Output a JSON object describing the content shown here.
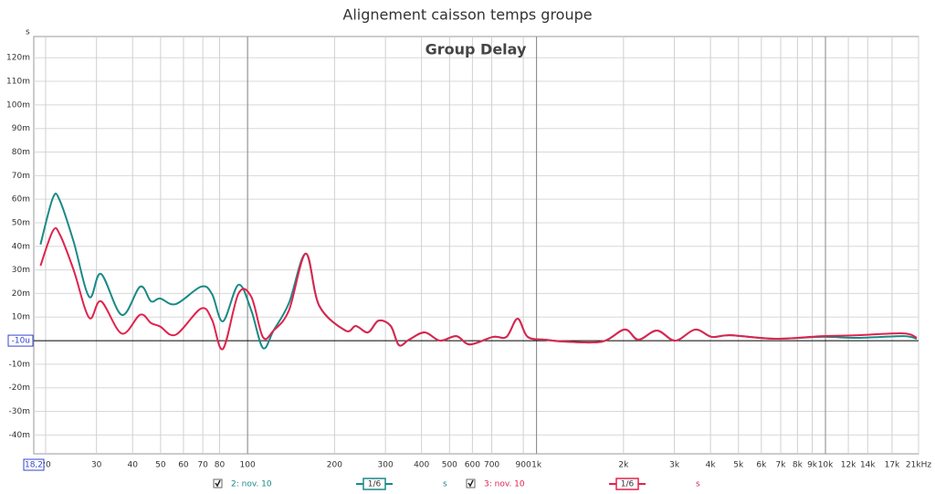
{
  "chart_data": {
    "type": "line",
    "title": "Alignement caisson temps groupe",
    "subtitle": "Group Delay",
    "y_label": "s",
    "log_x": true,
    "grid": true,
    "xlim": [
      18.2,
      21000
    ],
    "ylim": [
      -0.048,
      0.129
    ],
    "xticks": [
      20,
      30,
      40,
      50,
      60,
      70,
      80,
      100,
      200,
      300,
      400,
      500,
      600,
      700,
      900,
      {
        "value": 1000,
        "label": "1k"
      },
      {
        "value": 2000,
        "label": "2k"
      },
      {
        "value": 3000,
        "label": "3k"
      },
      {
        "value": 4000,
        "label": "4k"
      },
      {
        "value": 5000,
        "label": "5k"
      },
      {
        "value": 6000,
        "label": "6k"
      },
      {
        "value": 7000,
        "label": "7k"
      },
      {
        "value": 8000,
        "label": "8k"
      },
      {
        "value": 9000,
        "label": "9k"
      },
      {
        "value": 10000,
        "label": "10k"
      },
      {
        "value": 12000,
        "label": "12k"
      },
      {
        "value": 14000,
        "label": "14k"
      },
      {
        "value": 17000,
        "label": "17k"
      },
      {
        "value": 21000,
        "label": "21kHz"
      }
    ],
    "major_x": [
      100,
      1000,
      10000
    ],
    "yticks": [
      {
        "value": 0.12,
        "label": "120m"
      },
      {
        "value": 0.11,
        "label": "110m"
      },
      {
        "value": 0.1,
        "label": "100m"
      },
      {
        "value": 0.09,
        "label": "90m"
      },
      {
        "value": 0.08,
        "label": "80m"
      },
      {
        "value": 0.07,
        "label": "70m"
      },
      {
        "value": 0.06,
        "label": "60m"
      },
      {
        "value": 0.05,
        "label": "50m"
      },
      {
        "value": 0.04,
        "label": "40m"
      },
      {
        "value": 0.03,
        "label": "30m"
      },
      {
        "value": 0.02,
        "label": "20m"
      },
      {
        "value": 0.01,
        "label": "10m"
      },
      {
        "value": -0.01,
        "label": "-10m"
      },
      {
        "value": -0.02,
        "label": "-20m"
      },
      {
        "value": -0.03,
        "label": "-30m"
      },
      {
        "value": -0.04,
        "label": "-40m"
      }
    ],
    "cursor": {
      "x": {
        "value": 18.2,
        "label": "18,2"
      },
      "y": {
        "value": 0,
        "label": "-10u"
      }
    },
    "x": [
      19.2,
      21.2,
      22.4,
      25,
      28.3,
      31.1,
      36.7,
      42.5,
      46.3,
      49.8,
      56.4,
      69,
      75.3,
      82.2,
      93,
      103,
      113,
      123,
      139,
      159,
      177,
      218,
      237,
      261,
      284,
      313,
      334,
      362,
      410,
      463,
      528,
      588,
      707,
      787,
      860,
      932,
      1075,
      1263,
      1686,
      2020,
      2250,
      2610,
      3020,
      3540,
      4040,
      4680,
      6700,
      9710,
      12970,
      18600,
      20700
    ],
    "series": [
      {
        "name": "2: nov. 10",
        "color": "#1a8a86",
        "smoothing": "1/6",
        "unit": "s",
        "values": [
          0.0408,
          0.0606,
          0.0594,
          0.042,
          0.0186,
          0.0283,
          0.0109,
          0.0229,
          0.0167,
          0.0179,
          0.0155,
          0.0229,
          0.0198,
          0.0082,
          0.0237,
          0.0128,
          -0.0031,
          0.0043,
          0.0159,
          0.0369,
          0.0148,
          0.0043,
          0.0062,
          0.0035,
          0.0085,
          0.0062,
          -0.0019,
          0.0004,
          0.0035,
          0,
          0.0019,
          -0.0016,
          0.0016,
          0.0016,
          0.0093,
          0.0016,
          0.0004,
          -0.0004,
          -0.0004,
          0.0047,
          0.0004,
          0.0043,
          0,
          0.0047,
          0.0016,
          0.0023,
          0.0008,
          0.0016,
          0.0012,
          0.0019,
          0.0008
        ]
      },
      {
        "name": "3: nov. 10",
        "color": "#e0234e",
        "smoothing": "1/6",
        "unit": "s",
        "values": [
          0.0318,
          0.0466,
          0.045,
          0.03,
          0.0097,
          0.0167,
          0.003,
          0.011,
          0.0075,
          0.006,
          0.0025,
          0.0136,
          0.0089,
          -0.0035,
          0.02,
          0.0186,
          0.0015,
          0.0043,
          0.0128,
          0.0369,
          0.0148,
          0.0043,
          0.0062,
          0.0035,
          0.0085,
          0.0062,
          -0.0019,
          0.0004,
          0.0035,
          0,
          0.0019,
          -0.0016,
          0.0016,
          0.0016,
          0.0093,
          0.0016,
          0.0004,
          -0.0004,
          -0.0004,
          0.0047,
          0.0004,
          0.0043,
          0,
          0.0047,
          0.0016,
          0.0023,
          0.0008,
          0.0019,
          0.0023,
          0.0031,
          0.0012
        ]
      }
    ]
  }
}
